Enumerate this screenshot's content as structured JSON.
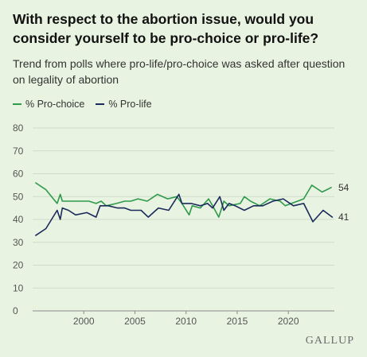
{
  "title": "With respect to the abortion issue, would you consider yourself to be pro-choice or pro-life?",
  "subtitle": "Trend from polls where pro-life/pro-choice was asked after question on legality of abortion",
  "legend": [
    {
      "label": "% Pro-choice",
      "color": "#2e9a4b"
    },
    {
      "label": "% Pro-life",
      "color": "#1b2a5c"
    }
  ],
  "watermark": "GALLUP",
  "chart_data": {
    "type": "line",
    "title": "With respect to the abortion issue, would you consider yourself to be pro-choice or pro-life?",
    "subtitle": "Trend from polls where pro-life/pro-choice was asked after question on legality of abortion",
    "xlim": [
      1995,
      2024.5
    ],
    "ylim": [
      0,
      80
    ],
    "xticks": [
      2000,
      2005,
      2010,
      2015,
      2020
    ],
    "yticks": [
      0,
      10,
      20,
      30,
      40,
      50,
      60,
      70,
      80
    ],
    "grid": true,
    "legend_position": "top-left",
    "series": [
      {
        "name": "% Pro-choice",
        "color": "#2e9a4b",
        "end_label": "54",
        "points": [
          [
            1995.3,
            56
          ],
          [
            1996.3,
            53
          ],
          [
            1997.4,
            47
          ],
          [
            1997.7,
            51
          ],
          [
            1997.9,
            48
          ],
          [
            1998.5,
            48
          ],
          [
            1999.2,
            48
          ],
          [
            2000.5,
            48
          ],
          [
            2001.2,
            47
          ],
          [
            2001.7,
            48
          ],
          [
            2002.2,
            46
          ],
          [
            2003.2,
            47
          ],
          [
            2004.0,
            48
          ],
          [
            2004.6,
            48
          ],
          [
            2005.3,
            49
          ],
          [
            2006.2,
            48
          ],
          [
            2007.2,
            51
          ],
          [
            2008.2,
            49
          ],
          [
            2009.1,
            50
          ],
          [
            2009.6,
            47
          ],
          [
            2010.3,
            42
          ],
          [
            2010.6,
            46
          ],
          [
            2011.4,
            45
          ],
          [
            2012.2,
            49
          ],
          [
            2012.6,
            46
          ],
          [
            2013.2,
            41
          ],
          [
            2013.7,
            48
          ],
          [
            2014.2,
            46
          ],
          [
            2015.3,
            47
          ],
          [
            2015.7,
            50
          ],
          [
            2016.3,
            48
          ],
          [
            2017.2,
            46
          ],
          [
            2018.2,
            49
          ],
          [
            2019.2,
            48
          ],
          [
            2019.7,
            46
          ],
          [
            2020.3,
            47
          ],
          [
            2021.5,
            49
          ],
          [
            2022.3,
            55
          ],
          [
            2023.3,
            52
          ],
          [
            2024.2,
            54
          ]
        ]
      },
      {
        "name": "% Pro-life",
        "color": "#1b2a5c",
        "end_label": "41",
        "points": [
          [
            1995.3,
            33
          ],
          [
            1996.3,
            36
          ],
          [
            1997.4,
            44
          ],
          [
            1997.7,
            40
          ],
          [
            1997.9,
            45
          ],
          [
            1998.5,
            44
          ],
          [
            1999.2,
            42
          ],
          [
            2000.3,
            43
          ],
          [
            2001.2,
            41
          ],
          [
            2001.6,
            46
          ],
          [
            2002.4,
            46
          ],
          [
            2003.3,
            45
          ],
          [
            2004.0,
            45
          ],
          [
            2004.6,
            44
          ],
          [
            2005.6,
            44
          ],
          [
            2006.3,
            41
          ],
          [
            2007.3,
            45
          ],
          [
            2008.3,
            44
          ],
          [
            2009.3,
            51
          ],
          [
            2009.6,
            47
          ],
          [
            2010.5,
            47
          ],
          [
            2011.4,
            46
          ],
          [
            2012.1,
            47
          ],
          [
            2012.6,
            45
          ],
          [
            2013.3,
            50
          ],
          [
            2013.7,
            44
          ],
          [
            2014.2,
            47
          ],
          [
            2014.8,
            46
          ],
          [
            2015.7,
            44
          ],
          [
            2016.6,
            46
          ],
          [
            2017.5,
            46
          ],
          [
            2018.5,
            48
          ],
          [
            2019.5,
            49
          ],
          [
            2020.5,
            46
          ],
          [
            2021.5,
            47
          ],
          [
            2022.4,
            39
          ],
          [
            2023.4,
            44
          ],
          [
            2024.3,
            41
          ]
        ]
      }
    ]
  }
}
